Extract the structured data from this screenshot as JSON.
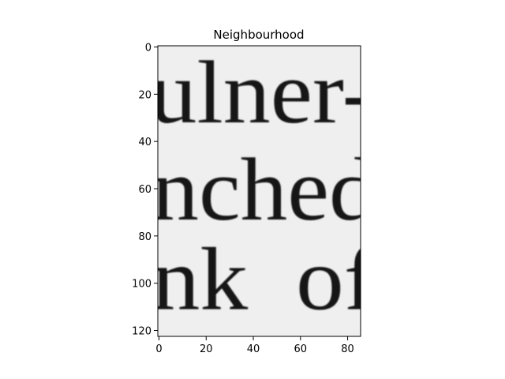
{
  "chart_data": {
    "type": "heatmap",
    "title": "Neighbourhood",
    "colormap": "gray",
    "image_size": {
      "width": 86,
      "height": 123
    },
    "xlim": [
      -0.5,
      85.5
    ],
    "ylim": [
      122.5,
      -0.5
    ],
    "x_ticks": [
      0,
      20,
      40,
      60,
      80
    ],
    "y_ticks": [
      0,
      20,
      40,
      60,
      80,
      100,
      120
    ],
    "grid": false,
    "background_color": "#efefef",
    "ink_color": "#161616",
    "text_lines": [
      {
        "text": "ulner-",
        "baseline_row": 32,
        "start_col": -4
      },
      {
        "text": "nched",
        "baseline_row": 73,
        "start_col": -3
      },
      {
        "text": "nk  of",
        "baseline_row": 111,
        "start_col": -3
      }
    ]
  }
}
